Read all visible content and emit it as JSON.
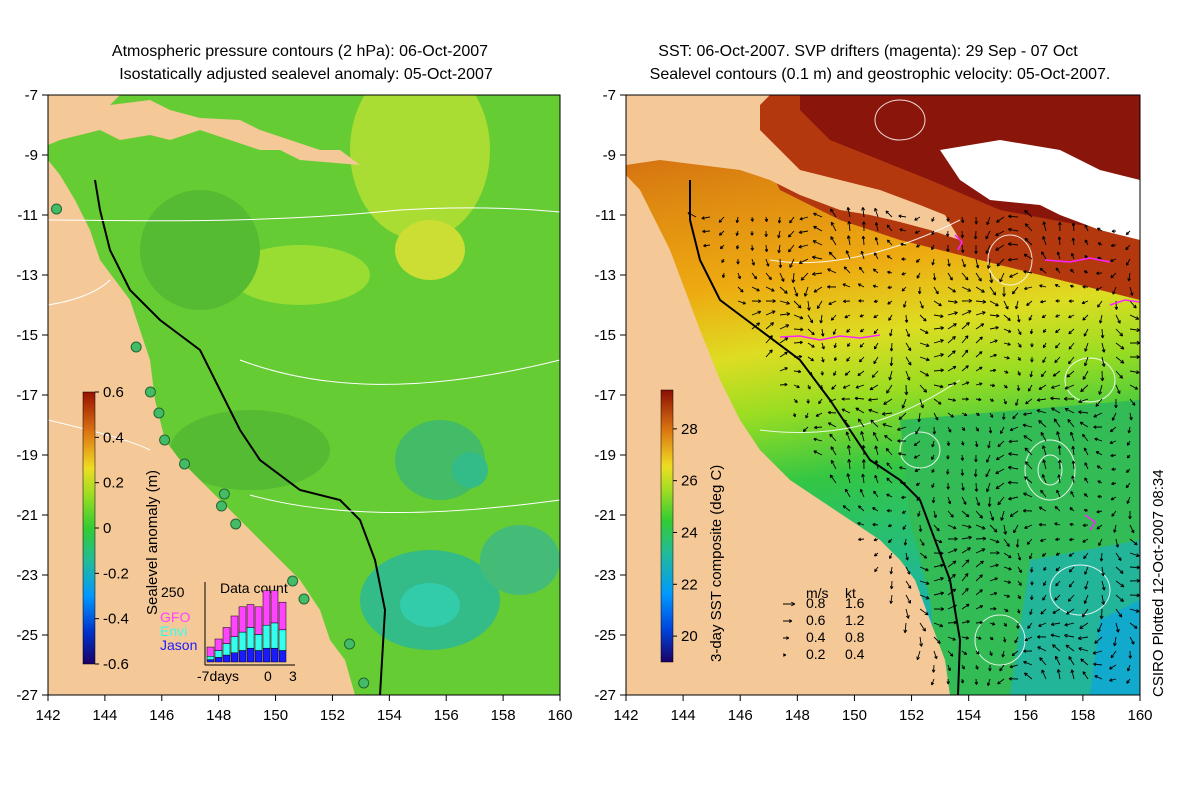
{
  "left_panel": {
    "title_line1": "Atmospheric pressure contours (2 hPa): 06-Oct-2007",
    "title_line2": "Isostatically adjusted sealevel anomaly: 05-Oct-2007",
    "colorbar_label": "Sealevel anomaly (m)",
    "colorbar_ticks": [
      "0.6",
      "0.4",
      "0.2",
      "0",
      "-0.2",
      "-0.4",
      "-0.6"
    ],
    "inset": {
      "title": "Data count",
      "ymax_label": "250",
      "x_labels": [
        "-7days",
        "0",
        "3"
      ],
      "legend": [
        {
          "name": "GFO",
          "color": "#ff44ff"
        },
        {
          "name": "Envi",
          "color": "#33ffee"
        },
        {
          "name": "Jason",
          "color": "#1a1aff"
        }
      ]
    }
  },
  "right_panel": {
    "title_line1": "SST: 06-Oct-2007. SVP drifters (magenta): 29 Sep - 07 Oct",
    "title_line2": "Sealevel contours (0.1 m) and geostrophic velocity: 05-Oct-2007.",
    "colorbar_label": "3-day SST composite (deg C)",
    "colorbar_ticks": [
      "28",
      "26",
      "24",
      "22",
      "20"
    ],
    "velocity_legend": {
      "header_ms": "m/s",
      "header_kt": "kt",
      "rows": [
        {
          "ms": "0.8",
          "kt": "1.6"
        },
        {
          "ms": "0.6",
          "kt": "1.2"
        },
        {
          "ms": "0.4",
          "kt": "0.8"
        },
        {
          "ms": "0.2",
          "kt": "0.4"
        }
      ]
    }
  },
  "credit": "CSIRO Plotted 12-Oct-2007 08:34",
  "chart_data": [
    {
      "type": "heatmap",
      "title": "Atmospheric pressure contours (2 hPa): 06-Oct-2007 / Isostatically adjusted sealevel anomaly: 05-Oct-2007",
      "x_ticks": [
        "142",
        "144",
        "146",
        "148",
        "150",
        "152",
        "154",
        "156",
        "158",
        "160"
      ],
      "y_ticks": [
        "-7",
        "-9",
        "-11",
        "-13",
        "-15",
        "-17",
        "-19",
        "-21",
        "-23",
        "-25",
        "-27"
      ],
      "xlim": [
        142,
        160
      ],
      "ylim": [
        -27,
        -7
      ],
      "colorbar": {
        "label": "Sealevel anomaly (m)",
        "range": [
          -0.6,
          0.6
        ]
      },
      "inset_bar": {
        "title": "Data count",
        "ylim": [
          0,
          250
        ],
        "x_range": [
          -7,
          3
        ],
        "series": [
          {
            "name": "GFO",
            "color": "#ff44ff"
          },
          {
            "name": "Envi",
            "color": "#33ffee"
          },
          {
            "name": "Jason",
            "color": "#1a1aff"
          }
        ]
      }
    },
    {
      "type": "heatmap",
      "title": "SST: 06-Oct-2007. SVP drifters (magenta): 29 Sep - 07 Oct / Sealevel contours (0.1 m) and geostrophic velocity: 05-Oct-2007.",
      "x_ticks": [
        "142",
        "144",
        "146",
        "148",
        "150",
        "152",
        "154",
        "156",
        "158",
        "160"
      ],
      "y_ticks": [
        "-7",
        "-9",
        "-11",
        "-13",
        "-15",
        "-17",
        "-19",
        "-21",
        "-23",
        "-25",
        "-27"
      ],
      "xlim": [
        142,
        160
      ],
      "ylim": [
        -27,
        -7
      ],
      "colorbar": {
        "label": "3-day SST composite (deg C)",
        "range": [
          19,
          29.5
        ]
      }
    }
  ]
}
